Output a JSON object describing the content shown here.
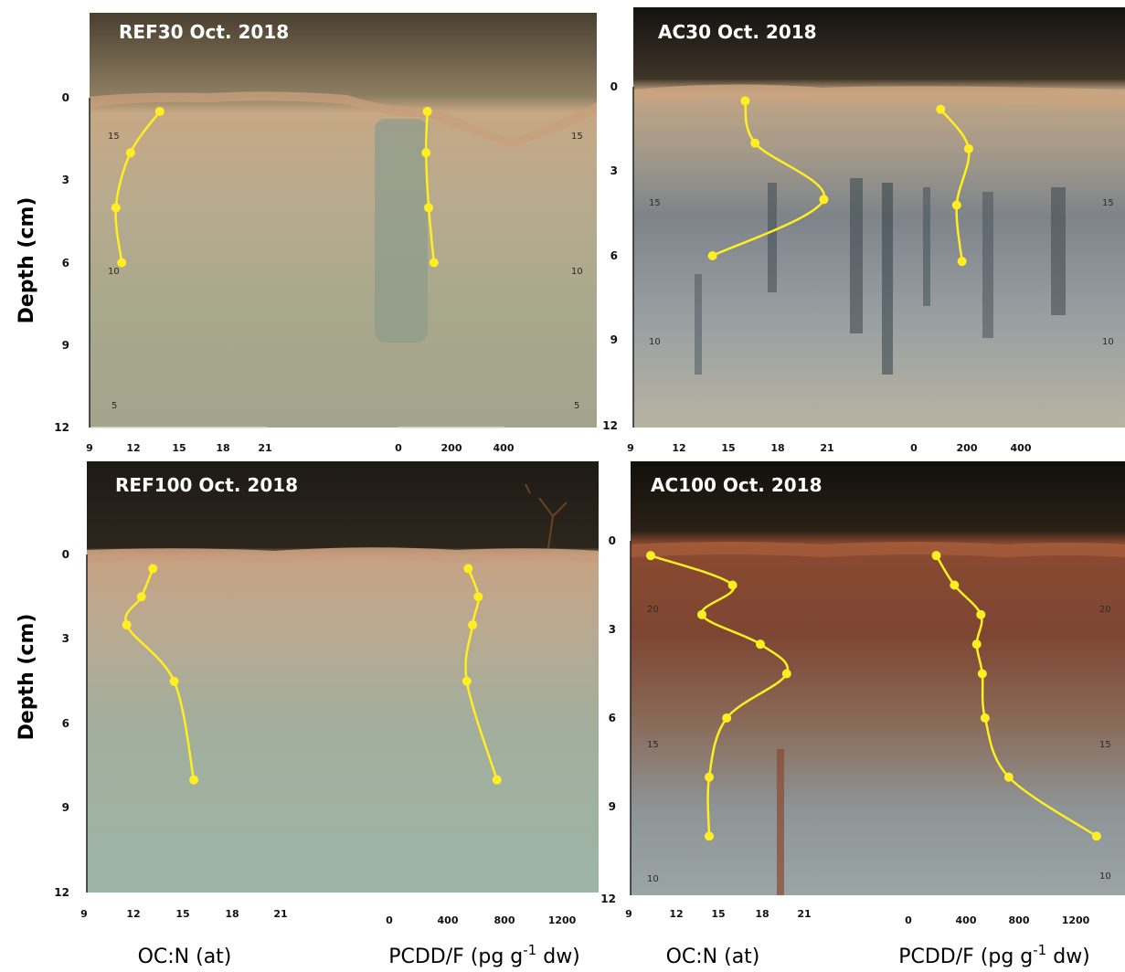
{
  "axis_titles": {
    "y": "Depth (cm)",
    "ocn": "OC:N (at)",
    "pcdd_prefix": "PCDD/F (pg g",
    "pcdd_sup": "-1",
    "pcdd_suffix": " dw)"
  },
  "colors": {
    "series": "#ffee22",
    "sky": "#2b251c"
  },
  "chart_data": [
    {
      "type": "line",
      "title": "REF30 Oct. 2018",
      "ylabel": "Depth (cm)",
      "ylim": [
        12,
        0
      ],
      "yticks": [
        "0",
        "3",
        "6",
        "9",
        "12"
      ],
      "ocn": {
        "xlabel": "OC:N (at)",
        "xlim": [
          9,
          21
        ],
        "xticks": [
          "9",
          "12",
          "15",
          "18",
          "21"
        ],
        "depth": [
          0.5,
          2,
          4,
          6
        ],
        "values": [
          13.8,
          11.8,
          10.8,
          11.2
        ]
      },
      "pcdd": {
        "xlabel": "PCDD/F (pg g-1 dw)",
        "xticks": [
          "0",
          "200",
          "400"
        ],
        "depth": [
          0.5,
          2,
          4,
          6
        ],
        "values": [
          110,
          105,
          115,
          135
        ]
      },
      "ruler_marks": [
        "15",
        "15",
        "10",
        "10",
        "5",
        "5"
      ]
    },
    {
      "type": "line",
      "title": "AC30 Oct. 2018",
      "ylabel": "Depth (cm)",
      "ylim": [
        12,
        0
      ],
      "yticks": [
        "0",
        "3",
        "6",
        "9",
        "12"
      ],
      "ocn": {
        "xlabel": "OC:N (at)",
        "xlim": [
          9,
          21
        ],
        "xticks": [
          "9",
          "12",
          "15",
          "18",
          "21"
        ],
        "depth": [
          0.5,
          2,
          4,
          6
        ],
        "values": [
          16.0,
          16.6,
          20.8,
          14.0
        ]
      },
      "pcdd": {
        "xlabel": "PCDD/F (pg g-1 dw)",
        "xticks": [
          "0",
          "200",
          "400"
        ],
        "depth": [
          0.8,
          2.2,
          4.2,
          6.2
        ],
        "values": [
          100,
          205,
          160,
          180
        ]
      },
      "ruler_marks": [
        "15",
        "15",
        "10",
        "10"
      ]
    },
    {
      "type": "line",
      "title": "REF100 Oct. 2018",
      "ylabel": "Depth (cm)",
      "ylim": [
        12,
        0
      ],
      "yticks": [
        "0",
        "3",
        "6",
        "9",
        "12"
      ],
      "ocn": {
        "xlabel": "OC:N (at)",
        "xlim": [
          9,
          21
        ],
        "xticks": [
          "9",
          "12",
          "15",
          "18",
          "21"
        ],
        "depth": [
          0.5,
          1.5,
          2.5,
          4.5,
          8
        ],
        "values": [
          13.2,
          12.5,
          11.6,
          14.5,
          15.7
        ]
      },
      "pcdd": {
        "xlabel": "PCDD/F (pg g-1 dw)",
        "xticks": [
          "0",
          "400",
          "800",
          "1200"
        ],
        "depth": [
          0.5,
          1.5,
          2.5,
          4.5,
          8
        ],
        "values": [
          550,
          620,
          580,
          540,
          750
        ]
      },
      "ruler_marks": []
    },
    {
      "type": "line",
      "title": "AC100 Oct. 2018",
      "ylabel": "Depth (cm)",
      "ylim": [
        12,
        0
      ],
      "yticks": [
        "0",
        "3",
        "6",
        "9",
        "12"
      ],
      "ocn": {
        "xlabel": "OC:N (at)",
        "xlim": [
          9,
          21
        ],
        "xticks": [
          "9",
          "12",
          "15",
          "18",
          "21"
        ],
        "depth": [
          0.5,
          1.5,
          2.5,
          3.5,
          4.5,
          6,
          8,
          10
        ],
        "values": [
          10.5,
          16.1,
          14.0,
          18.0,
          19.8,
          15.7,
          14.5,
          14.5
        ]
      },
      "pcdd": {
        "xlabel": "PCDD/F (pg g-1 dw)",
        "xticks": [
          "0",
          "400",
          "800",
          "1200"
        ],
        "depth": [
          0.5,
          1.5,
          2.5,
          3.5,
          4.5,
          6,
          8,
          10
        ],
        "values": [
          200,
          330,
          520,
          490,
          530,
          550,
          720,
          1350
        ]
      },
      "ruler_marks": [
        "20",
        "20",
        "15",
        "15",
        "10",
        "10"
      ]
    }
  ]
}
